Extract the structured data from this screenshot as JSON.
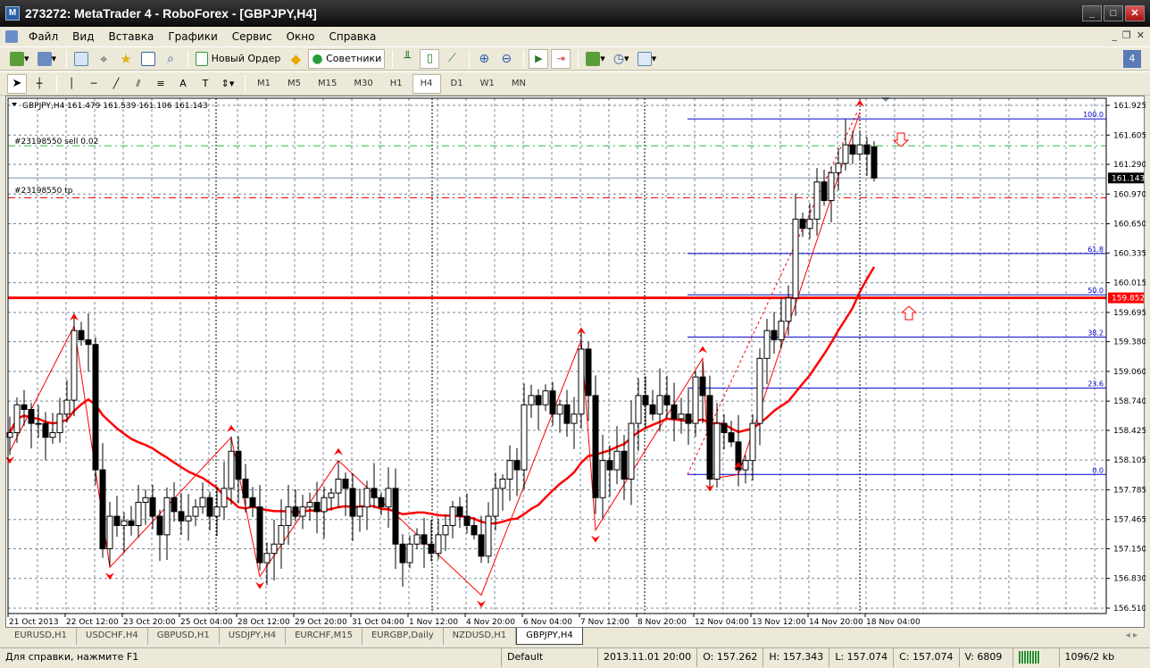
{
  "window": {
    "title": "273272: MetaTrader 4 - RoboForex - [GBPJPY,H4]"
  },
  "menu": [
    "Файл",
    "Вид",
    "Вставка",
    "Графики",
    "Сервис",
    "Окно",
    "Справка"
  ],
  "toolbar": {
    "new_order": "Новый Ордер",
    "experts": "Советники"
  },
  "timeframes": [
    "M1",
    "M5",
    "M15",
    "M30",
    "H1",
    "H4",
    "D1",
    "W1",
    "MN"
  ],
  "active_timeframe": "H4",
  "chart": {
    "header": "GBPJPY,H4  161.479 161.539 161.106 161.143",
    "order_label": "#23198550 sell 0.02",
    "tp_label": "#23198550 tp",
    "bid_label": "161.143",
    "level_label": "159.852",
    "colors": {
      "bull": "#ffffff",
      "bear": "#000000",
      "ma": "#ff0000",
      "fib": "#0000cc",
      "order": "#33bb33",
      "tp": "#ff0000",
      "level": "#ff0000",
      "grid": "#778899"
    }
  },
  "chart_data": {
    "type": "candlestick",
    "symbol": "GBPJPY",
    "timeframe": "H4",
    "ylim": [
      156.45,
      161.99
    ],
    "price_ticks": [
      "161.925",
      "161.605",
      "161.290",
      "160.970",
      "160.650",
      "160.335",
      "160.015",
      "159.695",
      "159.380",
      "159.060",
      "158.740",
      "158.425",
      "158.105",
      "157.785",
      "157.465",
      "157.150",
      "156.830",
      "156.510"
    ],
    "time_ticks": [
      "21 Oct 2013",
      "22 Oct 12:00",
      "23 Oct 20:00",
      "25 Oct 04:00",
      "28 Oct 12:00",
      "29 Oct 20:00",
      "31 Oct 04:00",
      "1 Nov 12:00",
      "4 Nov 20:00",
      "6 Nov 04:00",
      "7 Nov 12:00",
      "8 Nov 20:00",
      "12 Nov 04:00",
      "13 Nov 12:00",
      "14 Nov 20:00",
      "18 Nov 04:00"
    ],
    "closes": [
      158.4,
      158.7,
      158.65,
      158.5,
      158.5,
      158.35,
      158.4,
      158.6,
      158.75,
      159.5,
      159.4,
      159.35,
      158.0,
      157.15,
      157.5,
      157.4,
      157.45,
      157.4,
      157.65,
      157.7,
      157.5,
      157.3,
      157.7,
      157.55,
      157.45,
      157.5,
      157.6,
      157.7,
      157.5,
      157.6,
      157.8,
      158.2,
      157.9,
      157.7,
      157.6,
      157.0,
      157.1,
      157.2,
      157.4,
      157.6,
      157.5,
      157.6,
      157.65,
      157.55,
      157.7,
      157.75,
      157.9,
      157.8,
      157.5,
      157.6,
      157.8,
      157.7,
      157.6,
      157.8,
      157.2,
      157.0,
      157.2,
      157.3,
      157.2,
      157.1,
      157.3,
      157.4,
      157.6,
      157.5,
      157.4,
      157.3,
      157.07,
      157.5,
      157.8,
      157.9,
      158.1,
      158.0,
      158.7,
      158.8,
      158.7,
      158.85,
      158.6,
      158.7,
      158.5,
      158.6,
      159.3,
      158.8,
      157.7,
      158.1,
      158.0,
      158.2,
      157.9,
      158.5,
      158.8,
      158.7,
      158.6,
      158.8,
      158.7,
      158.55,
      158.6,
      158.5,
      159.0,
      158.8,
      157.9,
      158.5,
      158.4,
      158.3,
      158.0,
      158.1,
      158.5,
      159.2,
      159.5,
      159.4,
      159.6,
      159.85,
      160.7,
      160.6,
      160.7,
      161.1,
      160.9,
      161.2,
      161.3,
      161.5,
      161.4,
      161.5,
      161.4,
      161.143
    ],
    "last_ohlc": {
      "open": 161.479,
      "high": 161.539,
      "low": 161.106,
      "close": 161.143
    },
    "zigzag": [
      [
        0,
        158.2
      ],
      [
        9,
        159.55
      ],
      [
        14,
        156.95
      ],
      [
        31,
        158.35
      ],
      [
        35,
        156.85
      ],
      [
        46,
        158.1
      ],
      [
        66,
        156.65
      ],
      [
        80,
        159.4
      ],
      [
        82,
        157.35
      ],
      [
        97,
        159.2
      ],
      [
        98,
        157.9
      ],
      [
        102,
        157.95
      ],
      [
        119,
        161.85
      ]
    ],
    "fibonacci": [
      {
        "label": "100.0",
        "price": 161.78
      },
      {
        "label": "61.8",
        "price": 160.33
      },
      {
        "label": "50.0",
        "price": 159.885
      },
      {
        "label": "38.2",
        "price": 159.43
      },
      {
        "label": "23.6",
        "price": 158.88
      },
      {
        "label": "0.0",
        "price": 157.95
      }
    ],
    "order_price": 161.49,
    "tp_price": 160.93,
    "horizontal_level": 159.852,
    "bid": 161.143
  },
  "tabs": [
    "EURUSD,H1",
    "USDCHF,H4",
    "GBPUSD,H1",
    "USDJPY,H4",
    "EURCHF,M15",
    "EURGBP,Daily",
    "NZDUSD,H1",
    "GBPJPY,H4"
  ],
  "active_tab": "GBPJPY,H4",
  "status": {
    "help": "Для справки, нажмите F1",
    "profile": "Default",
    "time": "2013.11.01 20:00",
    "open": "O: 157.262",
    "high": "H: 157.343",
    "low": "L: 157.074",
    "close": "C: 157.074",
    "volume": "V: 6809",
    "traffic": "1096/2 kb"
  }
}
